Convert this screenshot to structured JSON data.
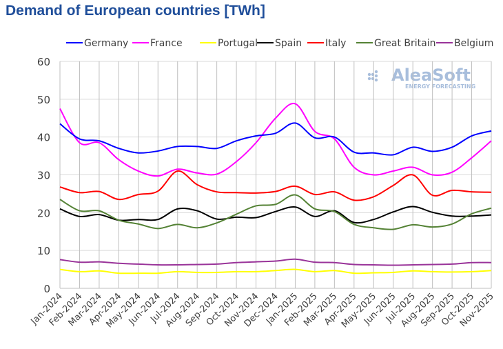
{
  "chart_data": {
    "type": "line",
    "title": "Demand of European countries [TWh]",
    "xlabel": "",
    "ylabel": "",
    "ylim": [
      0,
      60
    ],
    "yticks": [
      0,
      10,
      20,
      30,
      40,
      50,
      60
    ],
    "grid": true,
    "legend_position": "top",
    "watermark": {
      "brand": "AleaSoft",
      "tagline": "ENERGY FORECASTING"
    },
    "categories": [
      "Jan-2024",
      "Feb-2024",
      "Mar-2024",
      "Apr-2024",
      "May-2024",
      "Jun-2024",
      "Jul-2024",
      "Aug-2024",
      "Sep-2024",
      "Oct-2024",
      "Nov-2024",
      "Dec-2024",
      "Jan-2025",
      "Feb-2025",
      "Mar-2025",
      "Apr-2025",
      "May-2025",
      "Jun-2025",
      "Jul-2025",
      "Aug-2025",
      "Sep-2025",
      "Oct-2025",
      "Nov-2025"
    ],
    "series": [
      {
        "name": "Germany",
        "color": "#0000ff",
        "values": [
          43.5,
          39.5,
          39,
          37,
          35.8,
          36.3,
          37.5,
          37.5,
          37,
          39,
          40.3,
          41,
          43.7,
          39.8,
          40,
          36,
          35.8,
          35.3,
          37.3,
          36.2,
          37.3,
          40.3,
          41.6
        ]
      },
      {
        "name": "France",
        "color": "#ff00ff",
        "values": [
          47.5,
          38.5,
          38.5,
          34,
          31,
          29.7,
          31.5,
          30.5,
          30.2,
          33.5,
          38.5,
          45,
          48.8,
          41.5,
          39.5,
          32,
          30,
          31,
          32,
          30,
          30.7,
          34.5,
          39
        ]
      },
      {
        "name": "Portugal",
        "color": "#ffff00",
        "values": [
          5,
          4.4,
          4.6,
          4,
          4,
          4,
          4.4,
          4.2,
          4.2,
          4.4,
          4.4,
          4.7,
          5,
          4.4,
          4.7,
          4,
          4.1,
          4.2,
          4.6,
          4.4,
          4.3,
          4.4,
          4.7
        ]
      },
      {
        "name": "Spain",
        "color": "#000000",
        "values": [
          21,
          19,
          19.5,
          18,
          18.2,
          18.2,
          21,
          20.5,
          18.3,
          18.8,
          18.7,
          20.3,
          21.5,
          19,
          20.5,
          17.4,
          18.2,
          20.2,
          21.6,
          20.1,
          19.1,
          19.1,
          19.4
        ]
      },
      {
        "name": "Italy",
        "color": "#ff0000",
        "values": [
          26.8,
          25.3,
          25.6,
          23.5,
          24.8,
          25.7,
          31,
          27.4,
          25.5,
          25.3,
          25.2,
          25.6,
          27,
          24.8,
          25.5,
          23.3,
          24.2,
          27.2,
          30,
          24.6,
          25.9,
          25.5,
          25.4
        ]
      },
      {
        "name": "Great Britain",
        "color": "#548235",
        "values": [
          23.5,
          20.5,
          20.5,
          18,
          17,
          15.8,
          16.9,
          16,
          17.3,
          19.6,
          21.8,
          22.2,
          24.7,
          21,
          20.3,
          16.9,
          16,
          15.6,
          16.8,
          16.2,
          17,
          19.7,
          21.2
        ]
      },
      {
        "name": "Belgium",
        "color": "#993399",
        "values": [
          7.6,
          6.9,
          7,
          6.6,
          6.4,
          6.2,
          6.2,
          6.3,
          6.4,
          6.8,
          7,
          7.2,
          7.7,
          6.9,
          6.8,
          6.3,
          6.2,
          6.1,
          6.2,
          6.3,
          6.4,
          6.8,
          6.8
        ]
      }
    ]
  }
}
